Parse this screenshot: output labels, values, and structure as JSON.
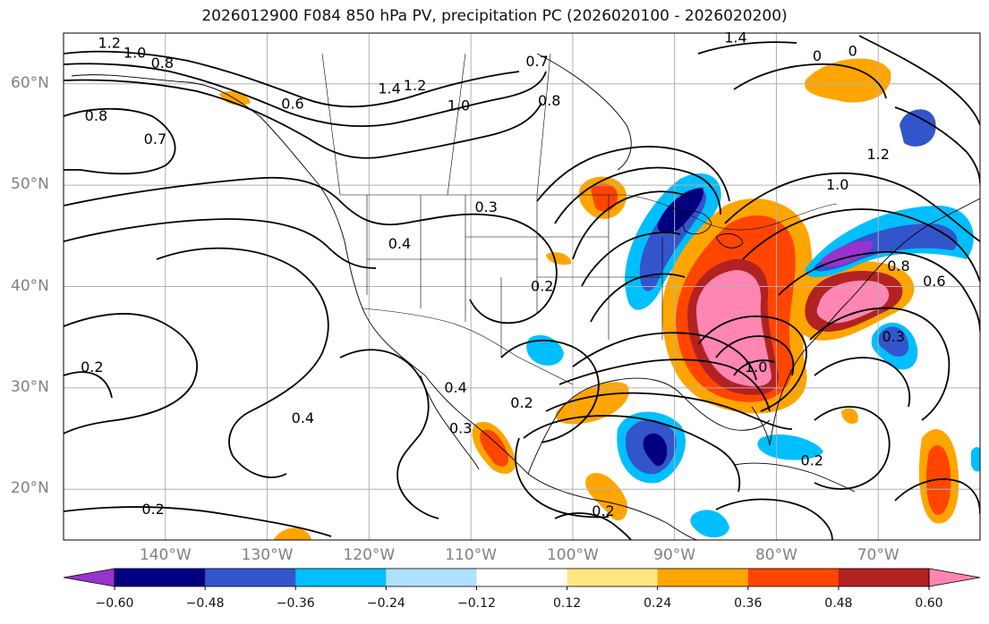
{
  "title": "2026012900 F084 850 hPa PV, precipitation PC (2026020100 - 2026020200)",
  "map": {
    "lon_range": [
      -150,
      -60
    ],
    "lat_range": [
      15,
      65
    ],
    "lat_labels": [
      {
        "lat": 60,
        "text": "60°N"
      },
      {
        "lat": 50,
        "text": "50°N"
      },
      {
        "lat": 40,
        "text": "40°N"
      },
      {
        "lat": 30,
        "text": "30°N"
      },
      {
        "lat": 20,
        "text": "20°N"
      }
    ],
    "lon_labels": [
      {
        "lon": -140,
        "text": "140°W"
      },
      {
        "lon": -130,
        "text": "130°W"
      },
      {
        "lon": -120,
        "text": "120°W"
      },
      {
        "lon": -110,
        "text": "110°W"
      },
      {
        "lon": -100,
        "text": "100°W"
      },
      {
        "lon": -90,
        "text": "90°W"
      },
      {
        "lon": -80,
        "text": "80°W"
      },
      {
        "lon": -70,
        "text": "70°W"
      }
    ],
    "contour_labels": [
      {
        "text": "1.2",
        "lon": -145.5,
        "lat": 64.0
      },
      {
        "text": "1.0",
        "lon": -143.0,
        "lat": 63.0
      },
      {
        "text": "0.8",
        "lon": -140.3,
        "lat": 62.0
      },
      {
        "text": "0.8",
        "lon": -146.8,
        "lat": 56.8
      },
      {
        "text": "0.7",
        "lon": -141.0,
        "lat": 54.5
      },
      {
        "text": "0.6",
        "lon": -127.5,
        "lat": 58.0
      },
      {
        "text": "1.4",
        "lon": -118.0,
        "lat": 59.5
      },
      {
        "text": "1.2",
        "lon": -115.5,
        "lat": 59.8
      },
      {
        "text": "1.0",
        "lon": -111.2,
        "lat": 57.8
      },
      {
        "text": "0.8",
        "lon": -102.3,
        "lat": 58.3
      },
      {
        "text": "0.7",
        "lon": -103.5,
        "lat": 62.2
      },
      {
        "text": "1.4",
        "lon": -84.0,
        "lat": 64.5
      },
      {
        "text": "0.4",
        "lon": -117.0,
        "lat": 44.2
      },
      {
        "text": "0.3",
        "lon": -108.5,
        "lat": 47.8
      },
      {
        "text": "0.2",
        "lon": -103.0,
        "lat": 40.0
      },
      {
        "text": "0.4",
        "lon": -111.5,
        "lat": 30.0
      },
      {
        "text": "0.3",
        "lon": -111.0,
        "lat": 26.0
      },
      {
        "text": "0.2",
        "lon": -105.0,
        "lat": 28.5
      },
      {
        "text": "0.2",
        "lon": -97.0,
        "lat": 17.8
      },
      {
        "text": "0.4",
        "lon": -126.5,
        "lat": 27.0
      },
      {
        "text": "0.2",
        "lon": -147.2,
        "lat": 32.0
      },
      {
        "text": "0.2",
        "lon": -141.2,
        "lat": 18.0
      },
      {
        "text": "1.0",
        "lon": -82.0,
        "lat": 32.0
      },
      {
        "text": "0.2",
        "lon": -76.5,
        "lat": 22.8
      },
      {
        "text": "0.3",
        "lon": -68.5,
        "lat": 35.0
      },
      {
        "text": "1.0",
        "lon": -74.0,
        "lat": 50.0
      },
      {
        "text": "1.2",
        "lon": -70.0,
        "lat": 53.0
      },
      {
        "text": "0.8",
        "lon": -68.0,
        "lat": 42.0
      },
      {
        "text": "0.6",
        "lon": -64.5,
        "lat": 40.5
      },
      {
        "text": "0",
        "lon": -76.0,
        "lat": 62.7
      },
      {
        "text": "0",
        "lon": -72.5,
        "lat": 63.2
      }
    ]
  },
  "colorbar": {
    "levels": [
      -0.6,
      -0.48,
      -0.36,
      -0.24,
      -0.12,
      0.12,
      0.24,
      0.36,
      0.48,
      0.6
    ],
    "tick_labels": [
      "−0.60",
      "−0.48",
      "−0.36",
      "−0.24",
      "−0.12",
      "0.12",
      "0.24",
      "0.36",
      "0.48",
      "0.60"
    ],
    "colors": [
      "#9933cc",
      "#000080",
      "#3355cc",
      "#00bfff",
      "#b0e0ff",
      "#ffffff",
      "#ffe680",
      "#ffa500",
      "#ff4500",
      "#b22222",
      "#ff85b3"
    ],
    "extend": "both"
  }
}
